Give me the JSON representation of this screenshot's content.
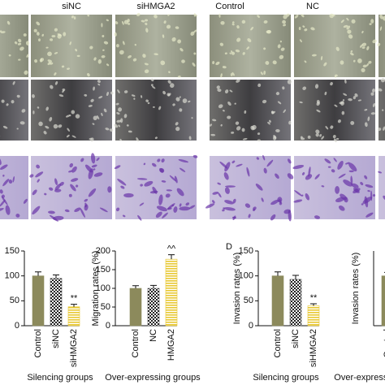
{
  "figure": {
    "column_labels": [
      "siNC",
      "siHMGA2",
      "Control",
      "NC"
    ],
    "panel_letter": "D"
  },
  "chart_data": [
    {
      "type": "bar",
      "xlabel": "Silencing groups",
      "categories": [
        "Control",
        "siNC",
        "siHMGA2"
      ],
      "values": [
        100,
        95,
        38
      ],
      "errors": [
        8,
        7,
        5
      ],
      "colors": [
        "#8c8a5c",
        "#555555",
        "#e8c832"
      ],
      "fills": [
        "solid",
        "checker",
        "stripes"
      ],
      "value_annotations": [
        null,
        null,
        "**"
      ],
      "ylim": [
        0,
        150
      ],
      "yticks": [
        0,
        50,
        100,
        150
      ]
    },
    {
      "type": "bar",
      "ylabel": "Migration rates (%)",
      "xlabel": "Over-expressing groups",
      "categories": [
        "Control",
        "NC",
        "HMGA2"
      ],
      "values": [
        100,
        100,
        178
      ],
      "errors": [
        7,
        8,
        12
      ],
      "colors": [
        "#8c8a5c",
        "#555555",
        "#e8c832"
      ],
      "fills": [
        "solid",
        "checker",
        "stripes"
      ],
      "value_annotations": [
        null,
        null,
        "^^"
      ],
      "ylim": [
        0,
        200
      ],
      "yticks": [
        0,
        50,
        100,
        150,
        200
      ]
    },
    {
      "type": "bar",
      "ylabel": "Invasion rates (%)",
      "xlabel": "Silencing groups",
      "categories": [
        "Control",
        "siNC",
        "siHMGA2"
      ],
      "values": [
        100,
        93,
        40
      ],
      "errors": [
        8,
        8,
        4
      ],
      "colors": [
        "#8c8a5c",
        "#555555",
        "#e8c832"
      ],
      "fills": [
        "solid",
        "checker",
        "stripes"
      ],
      "value_annotations": [
        null,
        null,
        "**"
      ],
      "ylim": [
        0,
        150
      ],
      "yticks": [
        0,
        50,
        100,
        150
      ]
    },
    {
      "type": "bar",
      "ylabel": "Invasion rates (%)",
      "xlabel": "Over-expressing groups",
      "categories": [
        "Control"
      ],
      "values": [
        100
      ],
      "errors": [
        7
      ],
      "colors": [
        "#8c8a5c"
      ],
      "fills": [
        "solid"
      ],
      "ylim": [
        0,
        150
      ]
    }
  ]
}
